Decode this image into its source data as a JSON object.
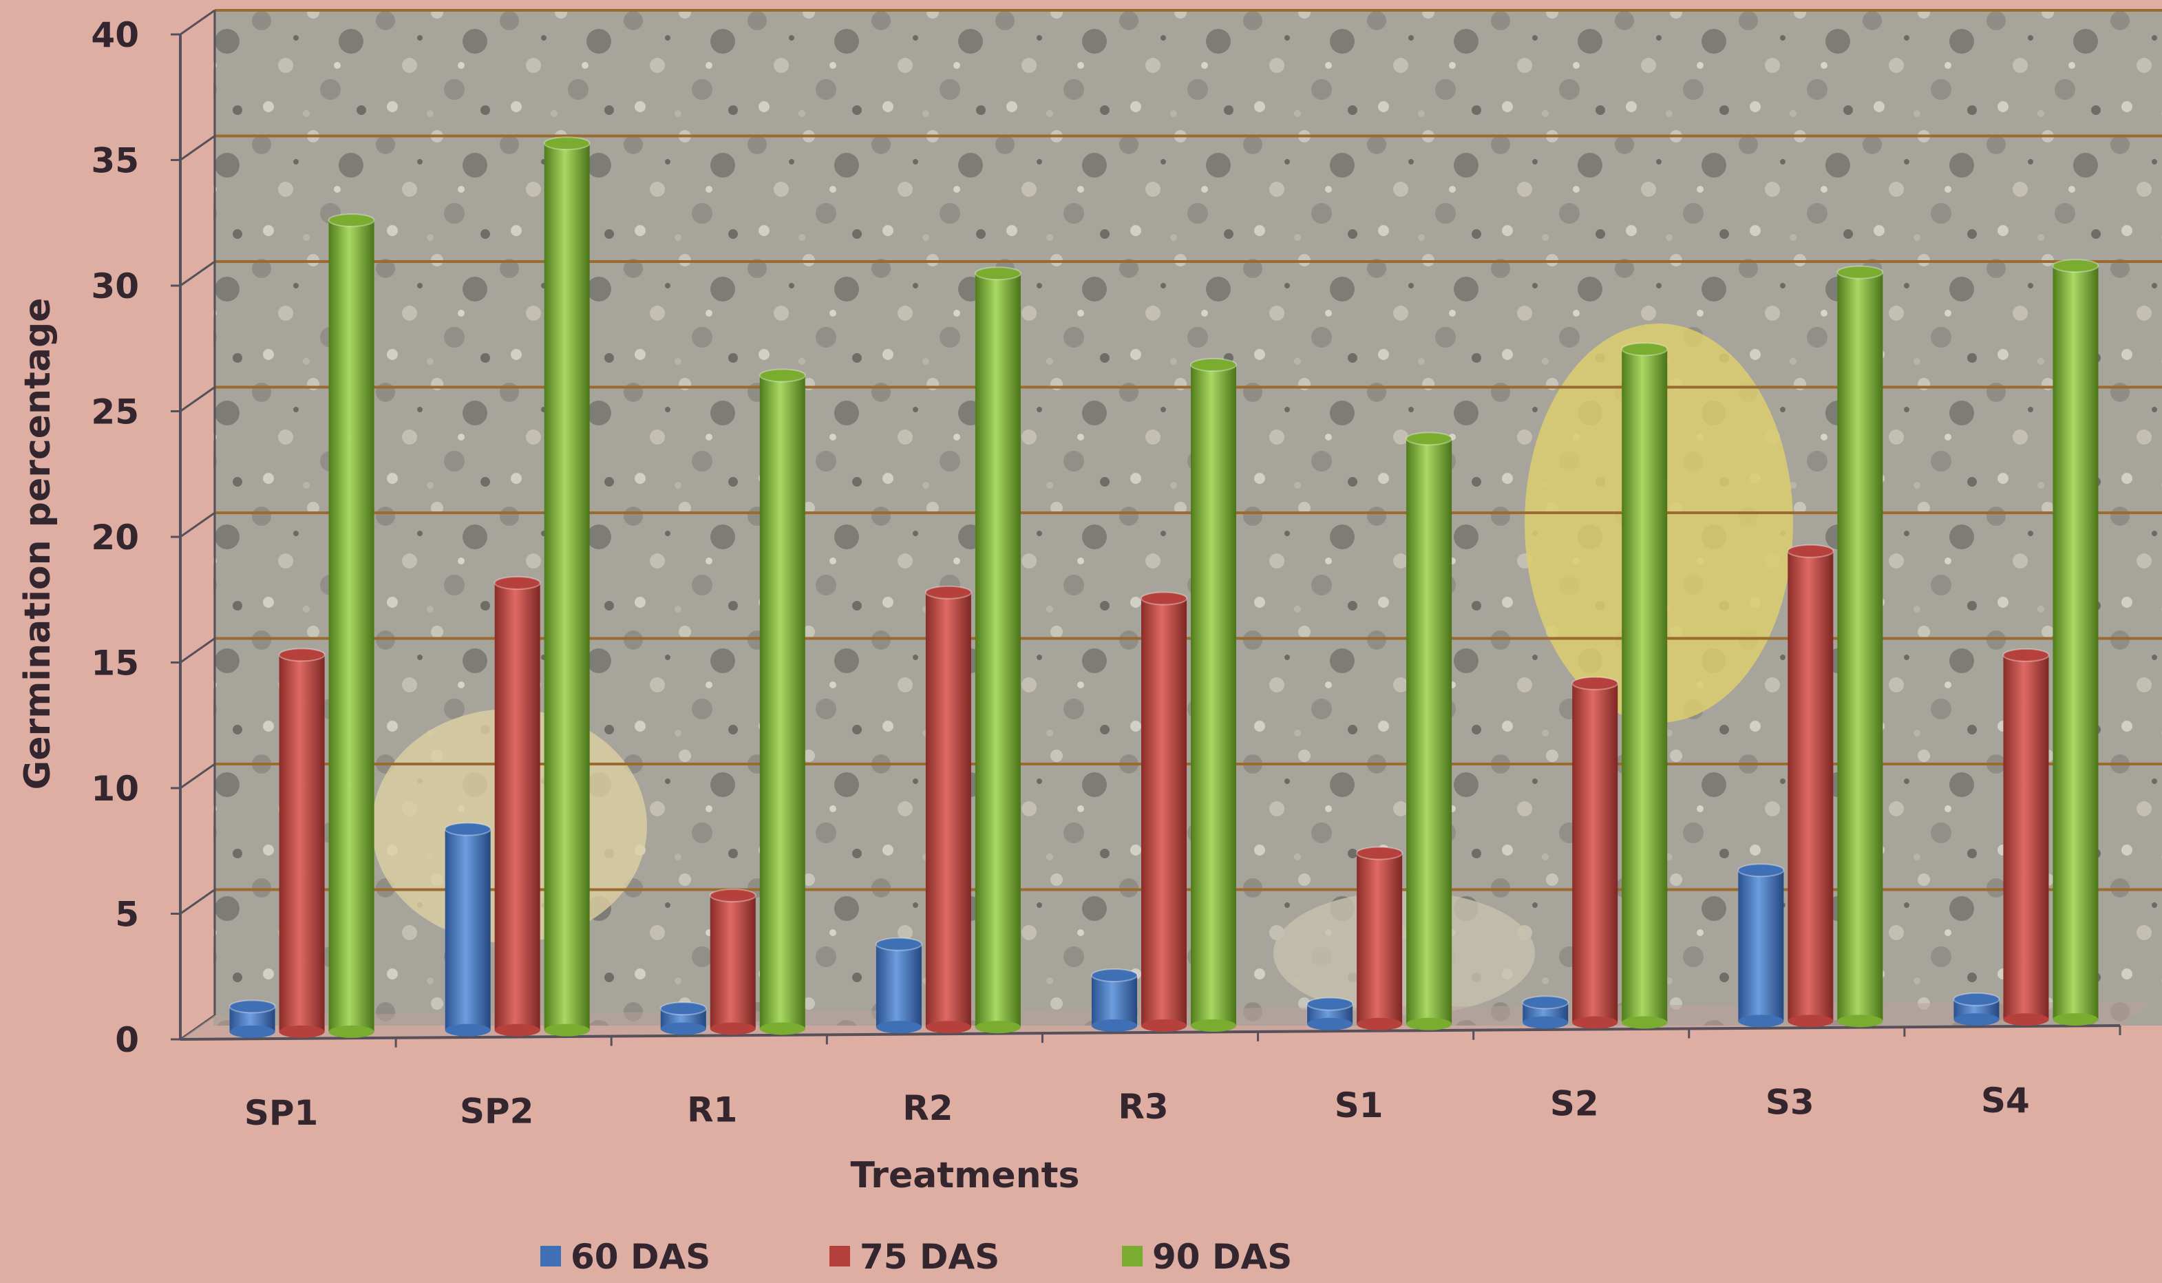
{
  "chart_data": {
    "type": "bar",
    "title": "",
    "xlabel": "Treatments",
    "ylabel": "Germination percentage",
    "categories": [
      "SP1",
      "SP2",
      "R1",
      "R2",
      "R3",
      "S1",
      "S2",
      "S3",
      "S4"
    ],
    "series": [
      {
        "name": "60 DAS",
        "color": "#3f6fb5",
        "values": [
          1,
          8,
          0.8,
          3.3,
          2,
          0.8,
          0.8,
          6,
          0.8
        ]
      },
      {
        "name": "75 DAS",
        "color": "#b6413c",
        "values": [
          15,
          17.8,
          5.3,
          17.3,
          17,
          6.8,
          13.5,
          18.7,
          14.5
        ]
      },
      {
        "name": "90 DAS",
        "color": "#79ac2f",
        "values": [
          32.3,
          35.3,
          26,
          30,
          26.3,
          23.3,
          26.8,
          29.8,
          30
        ]
      }
    ],
    "ylim": [
      0,
      40
    ],
    "yticks": [
      0,
      5,
      10,
      15,
      20,
      25,
      30,
      35,
      40
    ],
    "grid": true,
    "legend_position": "bottom",
    "background": "photo of gravelly soil"
  }
}
